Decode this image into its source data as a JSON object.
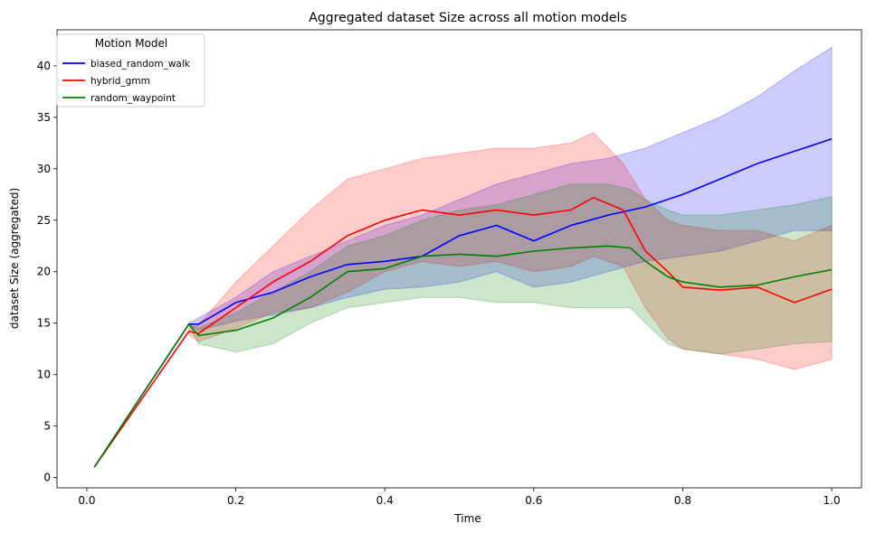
{
  "chart_data": {
    "type": "line",
    "title": "Aggregated dataset Size across all motion models",
    "xlabel": "Time",
    "ylabel": "dataset Size (aggregated)",
    "xlim": [
      -0.04,
      1.04
    ],
    "ylim": [
      -1,
      43.5
    ],
    "xticks": [
      0.0,
      0.2,
      0.4,
      0.6,
      0.8,
      1.0
    ],
    "xtick_labels": [
      "0.0",
      "0.2",
      "0.4",
      "0.6",
      "0.8",
      "1.0"
    ],
    "yticks": [
      0,
      5,
      10,
      15,
      20,
      25,
      30,
      35,
      40
    ],
    "ytick_labels": [
      "0",
      "5",
      "10",
      "15",
      "20",
      "25",
      "30",
      "35",
      "40"
    ],
    "grid": false,
    "legend": {
      "title": "Motion Model",
      "placement": "top-left"
    },
    "series": [
      {
        "name": "biased_random_walk",
        "color": "#0000ff",
        "band_color": "#0000ff",
        "points": [
          [
            0.01,
            1.0
          ],
          [
            0.137,
            14.9
          ],
          [
            0.15,
            14.9
          ],
          [
            0.2,
            17.0
          ],
          [
            0.25,
            18.0
          ],
          [
            0.3,
            19.5
          ],
          [
            0.35,
            20.7
          ],
          [
            0.4,
            21.0
          ],
          [
            0.45,
            21.5
          ],
          [
            0.5,
            23.5
          ],
          [
            0.55,
            24.5
          ],
          [
            0.6,
            23.0
          ],
          [
            0.65,
            24.5
          ],
          [
            0.7,
            25.5
          ],
          [
            0.75,
            26.3
          ],
          [
            0.8,
            27.5
          ],
          [
            0.85,
            29.0
          ],
          [
            0.9,
            30.5
          ],
          [
            0.95,
            31.7
          ],
          [
            1.0,
            32.9
          ]
        ],
        "upper": [
          [
            0.137,
            15.0
          ],
          [
            0.15,
            15.5
          ],
          [
            0.2,
            17.5
          ],
          [
            0.25,
            20.0
          ],
          [
            0.3,
            21.5
          ],
          [
            0.35,
            23.0
          ],
          [
            0.4,
            24.5
          ],
          [
            0.45,
            25.5
          ],
          [
            0.5,
            27.0
          ],
          [
            0.55,
            28.5
          ],
          [
            0.6,
            29.5
          ],
          [
            0.65,
            30.5
          ],
          [
            0.7,
            31.0
          ],
          [
            0.75,
            32.0
          ],
          [
            0.8,
            33.5
          ],
          [
            0.85,
            35.0
          ],
          [
            0.9,
            37.0
          ],
          [
            0.95,
            39.5
          ],
          [
            1.0,
            41.8
          ]
        ],
        "lower": [
          [
            0.137,
            14.8
          ],
          [
            0.15,
            14.3
          ],
          [
            0.2,
            15.2
          ],
          [
            0.25,
            15.8
          ],
          [
            0.3,
            16.5
          ],
          [
            0.35,
            17.5
          ],
          [
            0.4,
            18.3
          ],
          [
            0.45,
            18.5
          ],
          [
            0.5,
            19.0
          ],
          [
            0.55,
            20.0
          ],
          [
            0.6,
            18.5
          ],
          [
            0.65,
            19.0
          ],
          [
            0.7,
            20.0
          ],
          [
            0.75,
            21.0
          ],
          [
            0.8,
            21.5
          ],
          [
            0.85,
            22.0
          ],
          [
            0.9,
            23.0
          ],
          [
            0.95,
            24.0
          ],
          [
            1.0,
            24.0
          ]
        ]
      },
      {
        "name": "hybrid_gmm",
        "color": "#ff0000",
        "band_color": "#ff0000",
        "points": [
          [
            0.01,
            1.0
          ],
          [
            0.137,
            14.2
          ],
          [
            0.15,
            14.0
          ],
          [
            0.2,
            16.5
          ],
          [
            0.25,
            19.0
          ],
          [
            0.3,
            21.0
          ],
          [
            0.35,
            23.5
          ],
          [
            0.4,
            25.0
          ],
          [
            0.45,
            26.0
          ],
          [
            0.5,
            25.5
          ],
          [
            0.55,
            26.0
          ],
          [
            0.6,
            25.5
          ],
          [
            0.65,
            26.0
          ],
          [
            0.68,
            27.2
          ],
          [
            0.72,
            26.0
          ],
          [
            0.75,
            22.0
          ],
          [
            0.78,
            20.0
          ],
          [
            0.8,
            18.5
          ],
          [
            0.85,
            18.2
          ],
          [
            0.9,
            18.5
          ],
          [
            0.95,
            17.0
          ],
          [
            1.0,
            18.3
          ]
        ],
        "upper": [
          [
            0.137,
            14.5
          ],
          [
            0.15,
            14.8
          ],
          [
            0.2,
            19.0
          ],
          [
            0.25,
            22.5
          ],
          [
            0.3,
            26.0
          ],
          [
            0.35,
            29.0
          ],
          [
            0.4,
            30.0
          ],
          [
            0.45,
            31.0
          ],
          [
            0.5,
            31.5
          ],
          [
            0.55,
            32.0
          ],
          [
            0.6,
            32.0
          ],
          [
            0.65,
            32.5
          ],
          [
            0.68,
            33.5
          ],
          [
            0.72,
            30.5
          ],
          [
            0.75,
            27.0
          ],
          [
            0.78,
            25.0
          ],
          [
            0.8,
            24.5
          ],
          [
            0.85,
            24.0
          ],
          [
            0.9,
            24.0
          ],
          [
            0.95,
            23.0
          ],
          [
            1.0,
            24.5
          ]
        ],
        "lower": [
          [
            0.137,
            13.9
          ],
          [
            0.15,
            13.2
          ],
          [
            0.2,
            14.5
          ],
          [
            0.25,
            16.0
          ],
          [
            0.3,
            16.5
          ],
          [
            0.35,
            18.0
          ],
          [
            0.4,
            20.0
          ],
          [
            0.45,
            21.0
          ],
          [
            0.5,
            20.5
          ],
          [
            0.55,
            21.0
          ],
          [
            0.6,
            20.0
          ],
          [
            0.65,
            20.5
          ],
          [
            0.68,
            21.5
          ],
          [
            0.72,
            20.5
          ],
          [
            0.75,
            16.5
          ],
          [
            0.78,
            13.5
          ],
          [
            0.8,
            12.5
          ],
          [
            0.85,
            12.0
          ],
          [
            0.9,
            11.5
          ],
          [
            0.95,
            10.5
          ],
          [
            1.0,
            11.5
          ]
        ]
      },
      {
        "name": "random_waypoint",
        "color": "#008000",
        "band_color": "#008000",
        "points": [
          [
            0.01,
            1.0
          ],
          [
            0.137,
            14.9
          ],
          [
            0.15,
            13.8
          ],
          [
            0.2,
            14.3
          ],
          [
            0.25,
            15.5
          ],
          [
            0.3,
            17.5
          ],
          [
            0.35,
            20.0
          ],
          [
            0.4,
            20.3
          ],
          [
            0.45,
            21.5
          ],
          [
            0.5,
            21.7
          ],
          [
            0.55,
            21.5
          ],
          [
            0.6,
            22.0
          ],
          [
            0.65,
            22.3
          ],
          [
            0.7,
            22.5
          ],
          [
            0.73,
            22.3
          ],
          [
            0.75,
            21.0
          ],
          [
            0.78,
            19.5
          ],
          [
            0.8,
            19.0
          ],
          [
            0.85,
            18.5
          ],
          [
            0.9,
            18.7
          ],
          [
            0.95,
            19.5
          ],
          [
            1.0,
            20.2
          ]
        ],
        "upper": [
          [
            0.137,
            15.0
          ],
          [
            0.15,
            14.5
          ],
          [
            0.2,
            16.0
          ],
          [
            0.25,
            18.0
          ],
          [
            0.3,
            20.0
          ],
          [
            0.35,
            22.5
          ],
          [
            0.4,
            23.5
          ],
          [
            0.45,
            25.0
          ],
          [
            0.5,
            26.0
          ],
          [
            0.55,
            26.5
          ],
          [
            0.6,
            27.5
          ],
          [
            0.65,
            28.5
          ],
          [
            0.7,
            28.5
          ],
          [
            0.73,
            28.0
          ],
          [
            0.75,
            27.0
          ],
          [
            0.78,
            26.0
          ],
          [
            0.8,
            25.5
          ],
          [
            0.85,
            25.5
          ],
          [
            0.9,
            26.0
          ],
          [
            0.95,
            26.5
          ],
          [
            1.0,
            27.3
          ]
        ],
        "lower": [
          [
            0.137,
            14.8
          ],
          [
            0.15,
            13.0
          ],
          [
            0.2,
            12.2
          ],
          [
            0.25,
            13.0
          ],
          [
            0.3,
            15.0
          ],
          [
            0.35,
            16.5
          ],
          [
            0.4,
            17.0
          ],
          [
            0.45,
            17.5
          ],
          [
            0.5,
            17.5
          ],
          [
            0.55,
            17.0
          ],
          [
            0.6,
            17.0
          ],
          [
            0.65,
            16.5
          ],
          [
            0.7,
            16.5
          ],
          [
            0.73,
            16.5
          ],
          [
            0.75,
            15.0
          ],
          [
            0.78,
            13.0
          ],
          [
            0.8,
            12.5
          ],
          [
            0.85,
            12.0
          ],
          [
            0.9,
            12.5
          ],
          [
            0.95,
            13.0
          ],
          [
            1.0,
            13.2
          ]
        ]
      }
    ]
  }
}
